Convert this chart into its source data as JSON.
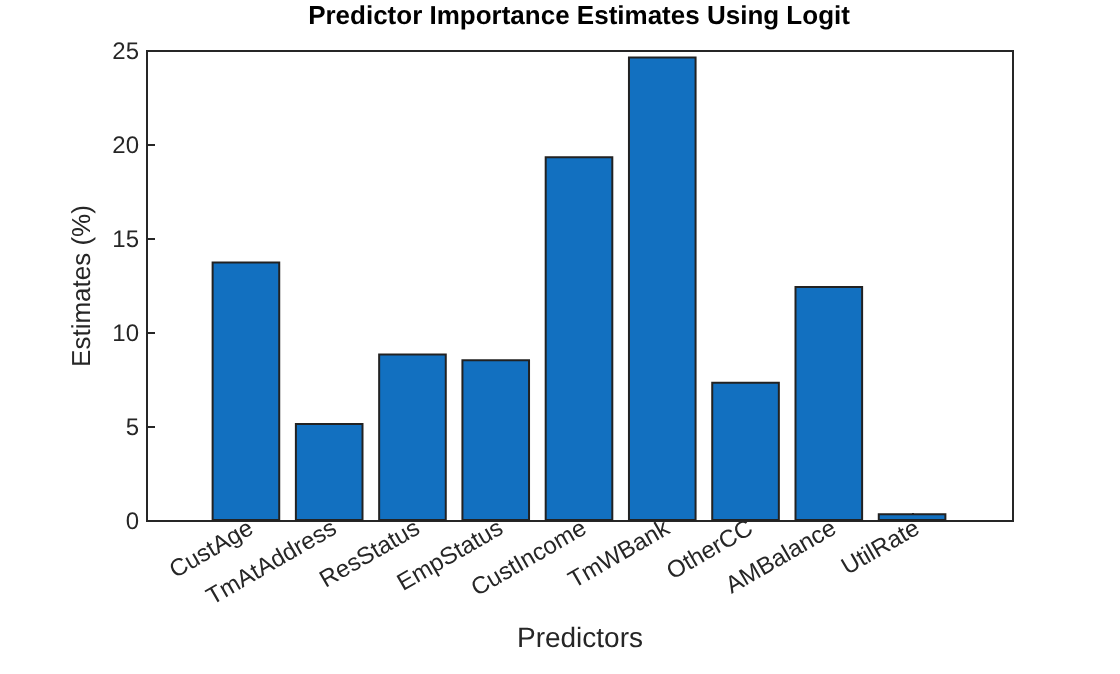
{
  "chart_data": {
    "type": "bar",
    "title": "Predictor Importance Estimates Using Logit",
    "xlabel": "Predictors",
    "ylabel": "Estimates (%)",
    "categories": [
      "CustAge",
      "TmAtAddress",
      "ResStatus",
      "EmpStatus",
      "CustIncome",
      "TmWBank",
      "OtherCC",
      "AMBalance",
      "UtilRate"
    ],
    "values": [
      13.7,
      5.1,
      8.8,
      8.5,
      19.3,
      24.6,
      7.3,
      12.4,
      0.3
    ],
    "color": "#1270c0",
    "ylim": [
      0,
      25
    ],
    "yticks": [
      0,
      5,
      10,
      15,
      20,
      25
    ],
    "grid": false
  }
}
